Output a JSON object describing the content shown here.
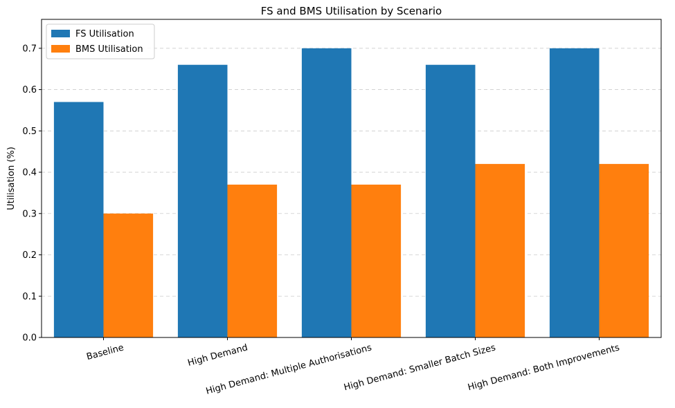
{
  "chart_data": {
    "type": "bar",
    "title": "FS and BMS Utilisation by Scenario",
    "xlabel": "",
    "ylabel": "Utilisation (%)",
    "categories": [
      "Baseline",
      "High Demand",
      "High Demand: Multiple Authorisations",
      "High Demand: Smaller Batch Sizes",
      "High Demand: Both Improvements"
    ],
    "series": [
      {
        "name": "FS Utilisation",
        "color": "#1f77b4",
        "values": [
          0.57,
          0.66,
          0.7,
          0.66,
          0.7
        ]
      },
      {
        "name": "BMS Utilisation",
        "color": "#ff7f0e",
        "values": [
          0.3,
          0.37,
          0.37,
          0.42,
          0.42
        ]
      }
    ],
    "ylim": [
      0,
      0.77
    ],
    "yticks": [
      "0.0",
      "0.1",
      "0.2",
      "0.3",
      "0.4",
      "0.5",
      "0.6",
      "0.7"
    ],
    "grid": "y-dashed",
    "legend": "top-left"
  }
}
